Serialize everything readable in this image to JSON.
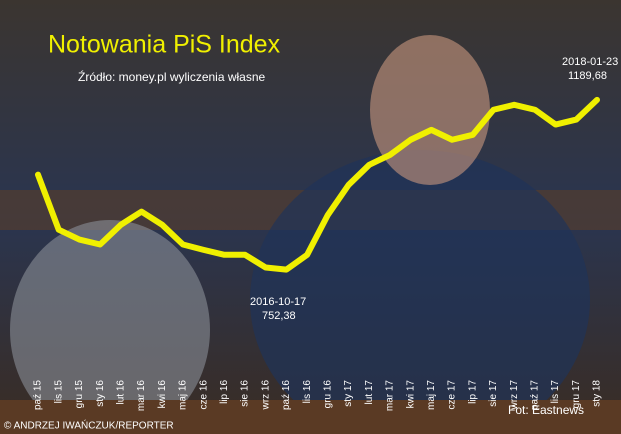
{
  "chart_data": {
    "type": "line",
    "title": "Notowania PiS Index",
    "subtitle": "Źródło: money.pl wyliczenia własne",
    "credits": [
      "Fot: Eastnews",
      "© ANDRZEJ IWAŃCZUK/REPORTER"
    ],
    "annotations": [
      {
        "date": "2016-10-17",
        "value": "752,38"
      },
      {
        "date": "2018-01-23",
        "value": "1189,68"
      }
    ],
    "categories": [
      "paź 15",
      "lis 15",
      "gru 15",
      "sty 16",
      "lut 16",
      "mar 16",
      "kwi 16",
      "maj 16",
      "cze 16",
      "lip 16",
      "sie 16",
      "wrz 16",
      "paź 16",
      "lis 16",
      "gru 16",
      "sty 17",
      "lut 17",
      "mar 17",
      "kwi 17",
      "maj 17",
      "cze 17",
      "lip 17",
      "sie 17",
      "wrz 17",
      "paź 17",
      "lis 17",
      "gru 17",
      "sty 18"
    ],
    "series": [
      {
        "name": "PiS Index",
        "color": "#f0f000",
        "values": [
          988,
          854,
          830,
          818,
          866,
          898,
          866,
          818,
          805,
          793,
          793,
          762,
          757,
          793,
          890,
          963,
          1012,
          1036,
          1073,
          1097,
          1073,
          1085,
          1146,
          1158,
          1146,
          1110,
          1122,
          1170
        ]
      }
    ],
    "ylim": [
      700,
      1250
    ]
  }
}
